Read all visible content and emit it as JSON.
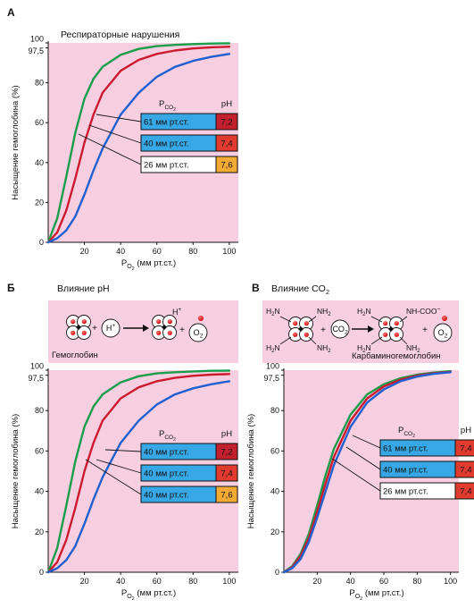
{
  "panels": [
    {
      "letter": "А",
      "title": "Респираторные нарушения",
      "chart_data": {
        "type": "line",
        "xlabel_main": "P",
        "xlabel_sub": "O",
        "xlabel_subsub": "2",
        "xlabel_unit": "(мм рт.ст.)",
        "ylabel": "Насыщение гемоглобина (%)",
        "xlim": [
          0,
          105
        ],
        "ylim": [
          0,
          100
        ],
        "xticks": [
          20,
          40,
          60,
          80,
          100
        ],
        "yticks": [
          "0",
          "20",
          "40",
          "60",
          "80",
          "97,5",
          "100"
        ],
        "ytick_values": [
          0,
          20,
          40,
          60,
          80,
          97.5,
          100
        ],
        "legend_header_p": "P",
        "legend_header_p_sub": "CO",
        "legend_header_p_subsub": "2",
        "legend_header_ph": "pH",
        "series": [
          {
            "color": "#1a9e4a",
            "p": "26 мм рт.ст.",
            "ph": "7,6",
            "box_color": "#ffffff",
            "ph_color": "#f2a830",
            "x": [
              0,
              5,
              10,
              15,
              20,
              25,
              30,
              40,
              50,
              60,
              70,
              80,
              90,
              100
            ],
            "y": [
              0,
              12,
              33,
              55,
              72,
              82,
              88,
              94,
              97,
              98.4,
              99,
              99.4,
              99.7,
              99.8
            ]
          },
          {
            "color": "#cc1b2e",
            "p": "40 мм рт.ст.",
            "ph": "7,4",
            "box_color": "#4aaee8",
            "ph_color": "#e03030",
            "x": [
              0,
              5,
              10,
              15,
              20,
              25,
              30,
              40,
              50,
              60,
              70,
              80,
              90,
              100
            ],
            "y": [
              0,
              5,
              16,
              32,
              50,
              64,
              75,
              86,
              91.5,
              94.5,
              96.2,
              97.2,
              97.8,
              98.1
            ]
          },
          {
            "color": "#2060d0",
            "p": "61 мм рт.ст.",
            "ph": "7,2",
            "box_color": "#4aaee8",
            "ph_color": "#c8202e",
            "x": [
              0,
              5,
              10,
              15,
              20,
              25,
              30,
              40,
              50,
              60,
              70,
              80,
              90,
              100
            ],
            "y": [
              0,
              2,
              6,
              13,
              24,
              36,
              47,
              64,
              75,
              83,
              88,
              91,
              93,
              94.5
            ]
          }
        ],
        "legend_rows": [
          {
            "p": "61 мм рт.ст.",
            "ph": "7,2",
            "p_fill": "#37a7e6",
            "ph_fill": "#c3202d"
          },
          {
            "p": "40 мм рт.ст.",
            "ph": "7,4",
            "p_fill": "#37a7e6",
            "ph_fill": "#e13a2e"
          },
          {
            "p": "26 мм рт.ст.",
            "ph": "7,6",
            "p_fill": "#ffffff",
            "ph_fill": "#f3aa35"
          }
        ]
      }
    },
    {
      "letter": "Б",
      "title": "Влияние pH",
      "equation": {
        "hb_label": "Гемоглобин",
        "h_plus": "H",
        "h_plus_sup": "+",
        "o2": "O",
        "o2_sub": "2",
        "plus": "+"
      },
      "chart_data": {
        "type": "line",
        "xlabel_main": "P",
        "xlabel_sub": "O",
        "xlabel_subsub": "2",
        "xlabel_unit": "(мм рт.ст.)",
        "ylabel": "Насыщение гемоглобина (%)",
        "xlim": [
          0,
          105
        ],
        "ylim": [
          0,
          100
        ],
        "xticks": [
          20,
          40,
          60,
          80,
          100
        ],
        "yticks": [
          "0",
          "20",
          "40",
          "60",
          "80",
          "97,5",
          "100"
        ],
        "ytick_values": [
          0,
          20,
          40,
          60,
          80,
          97.5,
          100
        ],
        "legend_header_p": "P",
        "legend_header_p_sub": "CO",
        "legend_header_p_subsub": "2",
        "legend_header_ph": "pH",
        "series": [
          {
            "color": "#1a9e4a",
            "x": [
              0,
              5,
              10,
              15,
              20,
              25,
              30,
              40,
              50,
              60,
              70,
              80,
              90,
              100
            ],
            "y": [
              0,
              12,
              33,
              55,
              72,
              82,
              88,
              94,
              97,
              98.4,
              99,
              99.4,
              99.7,
              99.8
            ]
          },
          {
            "color": "#cc1b2e",
            "x": [
              0,
              5,
              10,
              15,
              20,
              25,
              30,
              40,
              50,
              60,
              70,
              80,
              90,
              100
            ],
            "y": [
              0,
              5,
              16,
              32,
              50,
              64,
              75,
              86,
              91.5,
              94.5,
              96.2,
              97.2,
              97.8,
              98.1
            ]
          },
          {
            "color": "#2060d0",
            "x": [
              0,
              5,
              10,
              15,
              20,
              25,
              30,
              40,
              50,
              60,
              70,
              80,
              90,
              100
            ],
            "y": [
              0,
              2,
              6,
              13,
              24,
              36,
              47,
              64,
              75,
              83,
              88,
              91,
              93,
              94.5
            ]
          }
        ],
        "legend_rows": [
          {
            "p": "40 мм рт.ст.",
            "ph": "7,2",
            "p_fill": "#37a7e6",
            "ph_fill": "#c3202d"
          },
          {
            "p": "40 мм рт.ст.",
            "ph": "7,4",
            "p_fill": "#37a7e6",
            "ph_fill": "#e13a2e"
          },
          {
            "p": "40 мм рт.ст.",
            "ph": "7,6",
            "p_fill": "#37a7e6",
            "ph_fill": "#f3aa35"
          }
        ]
      }
    },
    {
      "letter": "В",
      "title": "Влияние CO",
      "title_sub": "2",
      "equation": {
        "carb_label": "Карбаминогемоглобин",
        "h2n": "H",
        "n": "N",
        "sub2": "2",
        "co2": "CO",
        "nh_coo": "NH-COO",
        "minus": "−",
        "o2": "O",
        "plus": "+"
      },
      "chart_data": {
        "type": "line",
        "xlabel_main": "P",
        "xlabel_sub": "O",
        "xlabel_subsub": "2",
        "xlabel_unit": "(мм рт.ст.)",
        "ylabel": "Насыщение гемоглобина (%)",
        "xlim": [
          0,
          105
        ],
        "ylim": [
          0,
          100
        ],
        "xticks": [
          20,
          40,
          60,
          80,
          100
        ],
        "yticks": [
          "0",
          "20",
          "40",
          "60",
          "80",
          "97,5",
          "100"
        ],
        "ytick_values": [
          0,
          20,
          40,
          60,
          80,
          97.5,
          100
        ],
        "legend_header_p": "P",
        "legend_header_p_sub": "CO",
        "legend_header_p_subsub": "2",
        "legend_header_ph": "pH",
        "series": [
          {
            "color": "#1a9e4a",
            "x": [
              0,
              5,
              10,
              15,
              20,
              25,
              30,
              40,
              50,
              60,
              70,
              80,
              90,
              100
            ],
            "y": [
              0,
              3,
              9,
              19,
              33,
              48,
              61,
              78,
              88,
              93,
              96,
              97.8,
              98.8,
              99.5
            ]
          },
          {
            "color": "#cc1b2e",
            "x": [
              0,
              5,
              10,
              15,
              20,
              25,
              30,
              40,
              50,
              60,
              70,
              80,
              90,
              100
            ],
            "y": [
              0,
              2.5,
              8,
              17,
              30,
              44,
              57,
              75,
              86,
              92,
              95.3,
              97.3,
              98.5,
              99.2
            ]
          },
          {
            "color": "#2060d0",
            "x": [
              0,
              5,
              10,
              15,
              20,
              25,
              30,
              40,
              50,
              60,
              70,
              80,
              90,
              100
            ],
            "y": [
              0,
              2,
              6.5,
              15,
              27,
              40,
              53,
              72,
              84,
              90.5,
              94.5,
              96.8,
              98.2,
              99
            ]
          }
        ],
        "legend_rows": [
          {
            "p": "61 мм рт.ст.",
            "ph": "7,4",
            "p_fill": "#37a7e6",
            "ph_fill": "#e13a2e"
          },
          {
            "p": "40 мм рт.ст.",
            "ph": "7,4",
            "p_fill": "#37a7e6",
            "ph_fill": "#e13a2e"
          },
          {
            "p": "26 мм рт.ст.",
            "ph": "7,4",
            "p_fill": "#ffffff",
            "ph_fill": "#e13a2e"
          }
        ]
      }
    }
  ]
}
